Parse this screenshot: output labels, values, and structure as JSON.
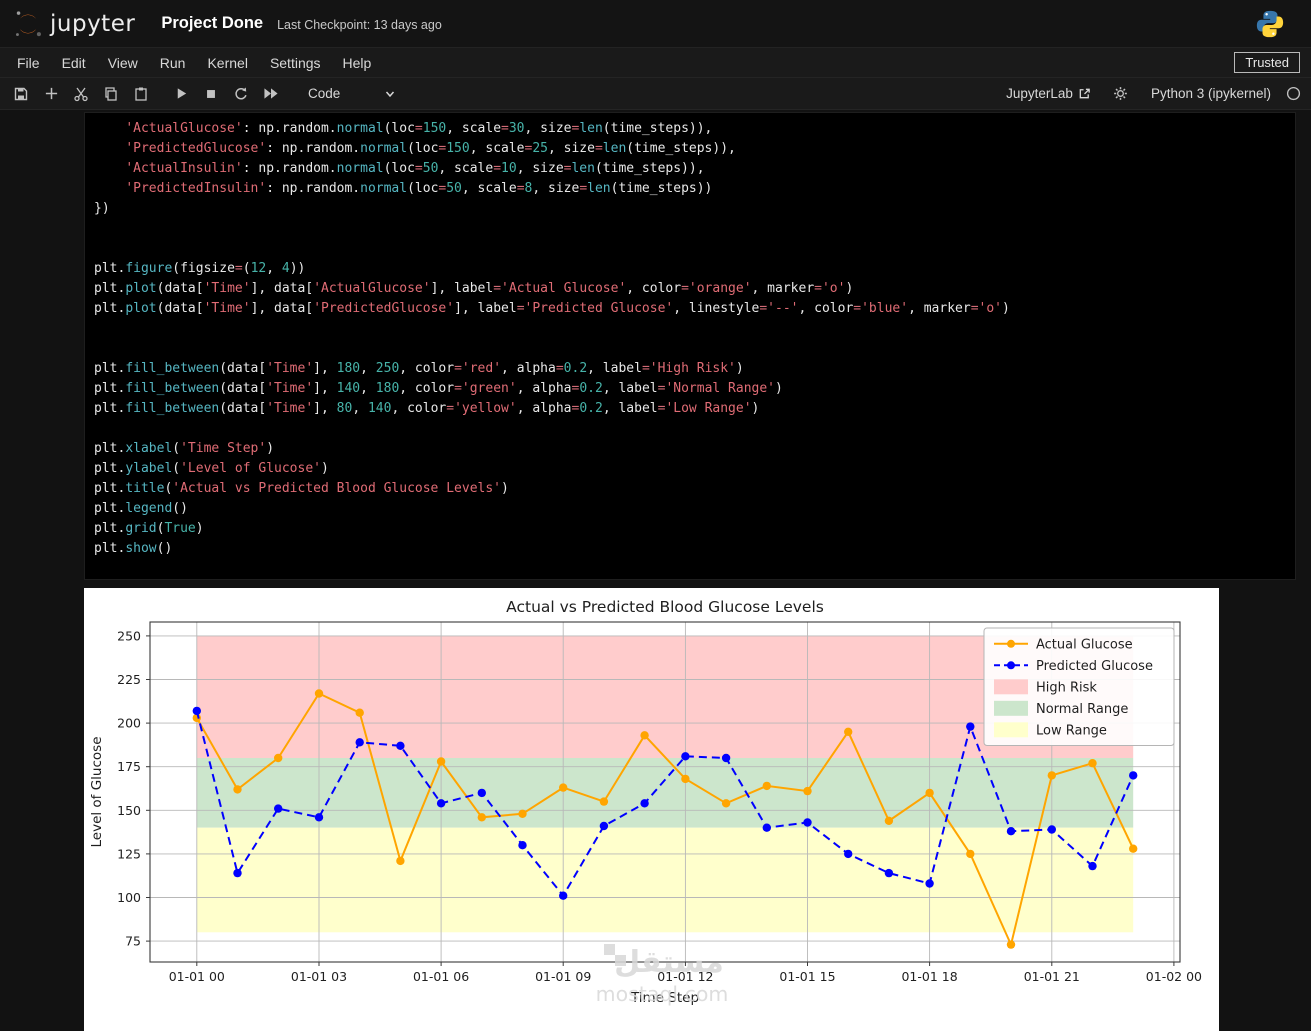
{
  "header": {
    "logo_text": "jupyter",
    "title": "Project Done",
    "checkpoint": "Last Checkpoint: 13 days ago"
  },
  "menu": {
    "items": [
      "File",
      "Edit",
      "View",
      "Run",
      "Kernel",
      "Settings",
      "Help"
    ],
    "trusted_label": "Trusted"
  },
  "toolbar": {
    "cell_type": "Code",
    "jupyterlab_link": "JupyterLab",
    "kernel_name": "Python 3 (ipykernel)"
  },
  "code_cell": {
    "lines": [
      [
        [
          "p",
          "    "
        ],
        [
          "s",
          "'ActualGlucose'"
        ],
        [
          "p",
          ": np.random."
        ],
        [
          "f",
          "normal"
        ],
        [
          "p",
          "(loc"
        ],
        [
          "o",
          "="
        ],
        [
          "n",
          "150"
        ],
        [
          "p",
          ", scale"
        ],
        [
          "o",
          "="
        ],
        [
          "n",
          "30"
        ],
        [
          "p",
          ", size"
        ],
        [
          "o",
          "="
        ],
        [
          "f",
          "len"
        ],
        [
          "p",
          "(time_steps)),"
        ]
      ],
      [
        [
          "p",
          "    "
        ],
        [
          "s",
          "'PredictedGlucose'"
        ],
        [
          "p",
          ": np.random."
        ],
        [
          "f",
          "normal"
        ],
        [
          "p",
          "(loc"
        ],
        [
          "o",
          "="
        ],
        [
          "n",
          "150"
        ],
        [
          "p",
          ", scale"
        ],
        [
          "o",
          "="
        ],
        [
          "n",
          "25"
        ],
        [
          "p",
          ", size"
        ],
        [
          "o",
          "="
        ],
        [
          "f",
          "len"
        ],
        [
          "p",
          "(time_steps)),"
        ]
      ],
      [
        [
          "p",
          "    "
        ],
        [
          "s",
          "'ActualInsulin'"
        ],
        [
          "p",
          ": np.random."
        ],
        [
          "f",
          "normal"
        ],
        [
          "p",
          "(loc"
        ],
        [
          "o",
          "="
        ],
        [
          "n",
          "50"
        ],
        [
          "p",
          ", scale"
        ],
        [
          "o",
          "="
        ],
        [
          "n",
          "10"
        ],
        [
          "p",
          ", size"
        ],
        [
          "o",
          "="
        ],
        [
          "f",
          "len"
        ],
        [
          "p",
          "(time_steps)),"
        ]
      ],
      [
        [
          "p",
          "    "
        ],
        [
          "s",
          "'PredictedInsulin'"
        ],
        [
          "p",
          ": np.random."
        ],
        [
          "f",
          "normal"
        ],
        [
          "p",
          "(loc"
        ],
        [
          "o",
          "="
        ],
        [
          "n",
          "50"
        ],
        [
          "p",
          ", scale"
        ],
        [
          "o",
          "="
        ],
        [
          "n",
          "8"
        ],
        [
          "p",
          ", size"
        ],
        [
          "o",
          "="
        ],
        [
          "f",
          "len"
        ],
        [
          "p",
          "(time_steps))"
        ]
      ],
      [
        [
          "p",
          "})"
        ]
      ],
      [],
      [],
      [
        [
          "p",
          "plt."
        ],
        [
          "f",
          "figure"
        ],
        [
          "p",
          "(figsize"
        ],
        [
          "o",
          "="
        ],
        [
          "p",
          "("
        ],
        [
          "n",
          "12"
        ],
        [
          "p",
          ", "
        ],
        [
          "n",
          "4"
        ],
        [
          "p",
          "))"
        ]
      ],
      [
        [
          "p",
          "plt."
        ],
        [
          "f",
          "plot"
        ],
        [
          "p",
          "(data["
        ],
        [
          "s",
          "'Time'"
        ],
        [
          "p",
          "], data["
        ],
        [
          "s",
          "'ActualGlucose'"
        ],
        [
          "p",
          "], label"
        ],
        [
          "o",
          "="
        ],
        [
          "s",
          "'Actual Glucose'"
        ],
        [
          "p",
          ", color"
        ],
        [
          "o",
          "="
        ],
        [
          "s",
          "'orange'"
        ],
        [
          "p",
          ", marker"
        ],
        [
          "o",
          "="
        ],
        [
          "s",
          "'o'"
        ],
        [
          "p",
          ")"
        ]
      ],
      [
        [
          "p",
          "plt."
        ],
        [
          "f",
          "plot"
        ],
        [
          "p",
          "(data["
        ],
        [
          "s",
          "'Time'"
        ],
        [
          "p",
          "], data["
        ],
        [
          "s",
          "'PredictedGlucose'"
        ],
        [
          "p",
          "], label"
        ],
        [
          "o",
          "="
        ],
        [
          "s",
          "'Predicted Glucose'"
        ],
        [
          "p",
          ", linestyle"
        ],
        [
          "o",
          "="
        ],
        [
          "s",
          "'--'"
        ],
        [
          "p",
          ", color"
        ],
        [
          "o",
          "="
        ],
        [
          "s",
          "'blue'"
        ],
        [
          "p",
          ", marker"
        ],
        [
          "o",
          "="
        ],
        [
          "s",
          "'o'"
        ],
        [
          "p",
          ")"
        ]
      ],
      [],
      [],
      [
        [
          "p",
          "plt."
        ],
        [
          "f",
          "fill_between"
        ],
        [
          "p",
          "(data["
        ],
        [
          "s",
          "'Time'"
        ],
        [
          "p",
          "], "
        ],
        [
          "n",
          "180"
        ],
        [
          "p",
          ", "
        ],
        [
          "n",
          "250"
        ],
        [
          "p",
          ", color"
        ],
        [
          "o",
          "="
        ],
        [
          "s",
          "'red'"
        ],
        [
          "p",
          ", alpha"
        ],
        [
          "o",
          "="
        ],
        [
          "n",
          "0.2"
        ],
        [
          "p",
          ", label"
        ],
        [
          "o",
          "="
        ],
        [
          "s",
          "'High Risk'"
        ],
        [
          "p",
          ")"
        ]
      ],
      [
        [
          "p",
          "plt."
        ],
        [
          "f",
          "fill_between"
        ],
        [
          "p",
          "(data["
        ],
        [
          "s",
          "'Time'"
        ],
        [
          "p",
          "], "
        ],
        [
          "n",
          "140"
        ],
        [
          "p",
          ", "
        ],
        [
          "n",
          "180"
        ],
        [
          "p",
          ", color"
        ],
        [
          "o",
          "="
        ],
        [
          "s",
          "'green'"
        ],
        [
          "p",
          ", alpha"
        ],
        [
          "o",
          "="
        ],
        [
          "n",
          "0.2"
        ],
        [
          "p",
          ", label"
        ],
        [
          "o",
          "="
        ],
        [
          "s",
          "'Normal Range'"
        ],
        [
          "p",
          ")"
        ]
      ],
      [
        [
          "p",
          "plt."
        ],
        [
          "f",
          "fill_between"
        ],
        [
          "p",
          "(data["
        ],
        [
          "s",
          "'Time'"
        ],
        [
          "p",
          "], "
        ],
        [
          "n",
          "80"
        ],
        [
          "p",
          ", "
        ],
        [
          "n",
          "140"
        ],
        [
          "p",
          ", color"
        ],
        [
          "o",
          "="
        ],
        [
          "s",
          "'yellow'"
        ],
        [
          "p",
          ", alpha"
        ],
        [
          "o",
          "="
        ],
        [
          "n",
          "0.2"
        ],
        [
          "p",
          ", label"
        ],
        [
          "o",
          "="
        ],
        [
          "s",
          "'Low Range'"
        ],
        [
          "p",
          ")"
        ]
      ],
      [],
      [
        [
          "p",
          "plt."
        ],
        [
          "f",
          "xlabel"
        ],
        [
          "p",
          "("
        ],
        [
          "s",
          "'Time Step'"
        ],
        [
          "p",
          ")"
        ]
      ],
      [
        [
          "p",
          "plt."
        ],
        [
          "f",
          "ylabel"
        ],
        [
          "p",
          "("
        ],
        [
          "s",
          "'Level of Glucose'"
        ],
        [
          "p",
          ")"
        ]
      ],
      [
        [
          "p",
          "plt."
        ],
        [
          "f",
          "title"
        ],
        [
          "p",
          "("
        ],
        [
          "s",
          "'Actual vs Predicted Blood Glucose Levels'"
        ],
        [
          "p",
          ")"
        ]
      ],
      [
        [
          "p",
          "plt."
        ],
        [
          "f",
          "legend"
        ],
        [
          "p",
          "()"
        ]
      ],
      [
        [
          "p",
          "plt."
        ],
        [
          "f",
          "grid"
        ],
        [
          "p",
          "("
        ],
        [
          "n",
          "True"
        ],
        [
          "p",
          ")"
        ]
      ],
      [
        [
          "p",
          "plt."
        ],
        [
          "f",
          "show"
        ],
        [
          "p",
          "()"
        ]
      ]
    ]
  },
  "chart_data": {
    "type": "line",
    "title": "Actual vs Predicted Blood Glucose Levels",
    "xlabel": "Time Step",
    "ylabel": "Level of Glucose",
    "x_hours": [
      0,
      1,
      2,
      3,
      4,
      5,
      6,
      7,
      8,
      9,
      10,
      11,
      12,
      13,
      14,
      15,
      16,
      17,
      18,
      19,
      20,
      21,
      22,
      23
    ],
    "x_tick_hours": [
      0,
      3,
      6,
      9,
      12,
      15,
      18,
      21,
      24
    ],
    "x_tick_labels": [
      "01-01 00",
      "01-01 03",
      "01-01 06",
      "01-01 09",
      "01-01 12",
      "01-01 15",
      "01-01 18",
      "01-01 21",
      "01-02 00"
    ],
    "y_ticks": [
      75,
      100,
      125,
      150,
      175,
      200,
      225,
      250
    ],
    "xlim": [
      -1.15,
      24.15
    ],
    "ylim": [
      63,
      258
    ],
    "grid": true,
    "legend_position": "upper right",
    "series": [
      {
        "name": "Actual Glucose",
        "color": "#ffa500",
        "style": "solid",
        "marker": "o",
        "values": [
          203,
          162,
          180,
          217,
          206,
          121,
          178,
          146,
          148,
          163,
          155,
          193,
          168,
          154,
          164,
          161,
          195,
          144,
          160,
          125,
          73,
          170,
          177,
          128
        ]
      },
      {
        "name": "Predicted Glucose",
        "color": "#0000ff",
        "style": "dashed",
        "marker": "o",
        "values": [
          207,
          114,
          151,
          146,
          189,
          187,
          154,
          160,
          130,
          101,
          141,
          154,
          181,
          180,
          140,
          143,
          125,
          114,
          108,
          198,
          138,
          139,
          118,
          170
        ]
      }
    ],
    "bands": [
      {
        "name": "High Risk",
        "from": 180,
        "to": 250,
        "color": "#ffcccc"
      },
      {
        "name": "Normal Range",
        "from": 140,
        "to": 180,
        "color": "#cce6cc"
      },
      {
        "name": "Low Range",
        "from": 80,
        "to": 140,
        "color": "#ffffcc"
      }
    ],
    "watermark": {
      "line1": "مستقل",
      "line2": "mostaql.com"
    }
  }
}
